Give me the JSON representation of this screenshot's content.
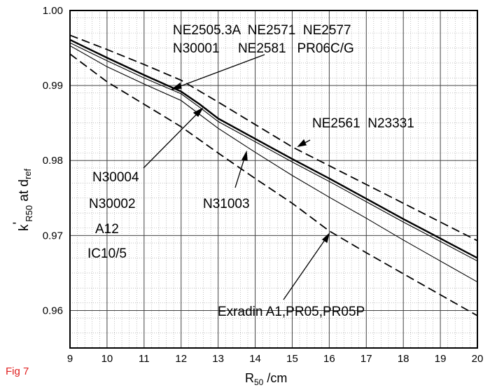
{
  "figure_label": "Fig 7",
  "chart_data": {
    "type": "line",
    "title": "",
    "xlabel": "R",
    "xlabel_sub": "50",
    "xlabel_unit": " /cm",
    "ylabel_k": "k",
    "ylabel_prime": "'",
    "ylabel_sub": "R50",
    "ylabel_mid": " at d",
    "ylabel_sub2": "ref",
    "xlim": [
      9,
      20
    ],
    "ylim": [
      0.955,
      1.0
    ],
    "xticks": [
      "9",
      "10",
      "11",
      "12",
      "13",
      "14",
      "15",
      "16",
      "17",
      "18",
      "19",
      "20"
    ],
    "yticks": [
      "1.00",
      "0.99",
      "0.98",
      "0.97",
      "0.96"
    ],
    "grid": true,
    "series": [
      {
        "name": "NE2561 N23331",
        "style": "dashed",
        "x": [
          9,
          10,
          11,
          12,
          13,
          14,
          15,
          16,
          17,
          18,
          19,
          20
        ],
        "y": [
          0.9967,
          0.9948,
          0.9928,
          0.9907,
          0.9878,
          0.9848,
          0.9818,
          0.9793,
          0.9768,
          0.9743,
          0.9718,
          0.9693
        ]
      },
      {
        "name": "N30004 N30002 A12 IC10/5",
        "style": "thick",
        "x": [
          9,
          10,
          11,
          12,
          12.5,
          13,
          14,
          15,
          16,
          17,
          18,
          19,
          20
        ],
        "y": [
          0.9961,
          0.9937,
          0.9914,
          0.9892,
          0.9875,
          0.9856,
          0.9829,
          0.9802,
          0.9776,
          0.9749,
          0.9722,
          0.9696,
          0.967
        ]
      },
      {
        "name": "NE2505.3A NE2571 NE2577 N30001 NE2581 PR06C/G",
        "style": "thin",
        "x": [
          9,
          10,
          11,
          12,
          12.5,
          13,
          14,
          15,
          16,
          17,
          18,
          19,
          20
        ],
        "y": [
          0.9957,
          0.9933,
          0.991,
          0.9889,
          0.9871,
          0.9852,
          0.9825,
          0.9798,
          0.9772,
          0.9745,
          0.9718,
          0.9692,
          0.9666
        ]
      },
      {
        "name": "N31003",
        "style": "thin",
        "x": [
          9,
          10,
          11,
          12,
          13,
          14,
          15,
          16,
          17,
          18,
          19,
          20
        ],
        "y": [
          0.9953,
          0.9925,
          0.9902,
          0.988,
          0.9843,
          0.9811,
          0.978,
          0.9751,
          0.9723,
          0.9694,
          0.9666,
          0.9638
        ]
      },
      {
        "name": "Exradin A1,PR05,PR05P",
        "style": "dashed",
        "x": [
          9,
          10,
          11,
          12,
          13,
          14,
          15,
          16,
          17,
          18,
          19,
          20
        ],
        "y": [
          0.9942,
          0.9905,
          0.9875,
          0.9845,
          0.981,
          0.9776,
          0.9743,
          0.9706,
          0.9677,
          0.9649,
          0.9621,
          0.9593
        ]
      }
    ],
    "annotations": {
      "ne_line1": "NE2505.3A  NE2571  NE2577",
      "ne_line2": "N30001     NE2581   PR06C/G",
      "ne2561": "NE2561  N23331",
      "n30004": "N30004",
      "n30002": "N30002",
      "a12": "A12",
      "ic10": "IC10/5",
      "n31003": "N31003",
      "exradin": "Exradin A1,PR05,PR05P"
    }
  }
}
